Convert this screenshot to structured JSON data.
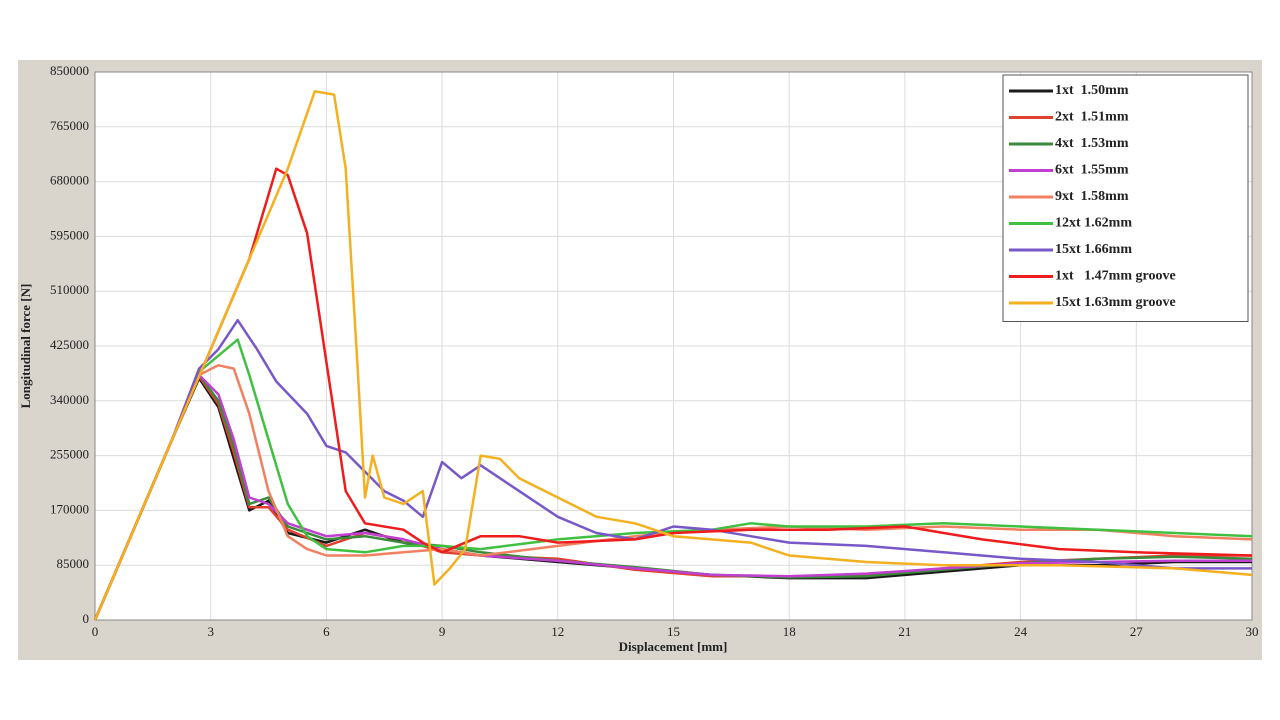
{
  "chart_data": {
    "type": "line",
    "xlabel": "Displacement [mm]",
    "ylabel": "Longitudinal force [N]",
    "xlim": [
      0,
      30
    ],
    "xticks": [
      0,
      3,
      6,
      9,
      12,
      15,
      18,
      21,
      24,
      27,
      30
    ],
    "ylim": [
      0,
      850000
    ],
    "yticks": [
      0,
      85000,
      170000,
      255000,
      340000,
      425000,
      510000,
      595000,
      680000,
      765000,
      850000
    ],
    "grid": true,
    "legend": "upper right",
    "series": [
      {
        "name": "1xt  1.50mm",
        "color": "#1a1a1a",
        "x": [
          0,
          1,
          2,
          2.7,
          3.2,
          3.6,
          4,
          4.5,
          5,
          6,
          7,
          8,
          9,
          10,
          12,
          14,
          16,
          18,
          20,
          22,
          24,
          26,
          28,
          30
        ],
        "values": [
          0,
          140000,
          280000,
          375000,
          330000,
          250000,
          170000,
          185000,
          135000,
          120000,
          140000,
          120000,
          110000,
          100000,
          90000,
          80000,
          70000,
          65000,
          65000,
          75000,
          85000,
          85000,
          90000,
          90000
        ]
      },
      {
        "name": "2xt  1.51mm",
        "color": "#e04030",
        "x": [
          0,
          1,
          2,
          2.7,
          3.2,
          3.6,
          4,
          4.5,
          5,
          6,
          7,
          8,
          9,
          10,
          12,
          14,
          16,
          18,
          20,
          22,
          24,
          26,
          28,
          30
        ],
        "values": [
          0,
          140000,
          280000,
          378000,
          335000,
          260000,
          175000,
          175000,
          140000,
          115000,
          135000,
          125000,
          105000,
          100000,
          95000,
          78000,
          68000,
          68000,
          70000,
          80000,
          90000,
          95000,
          100000,
          100000
        ]
      },
      {
        "name": "4xt  1.53mm",
        "color": "#3a8a3a",
        "x": [
          0,
          1,
          2,
          2.7,
          3.2,
          3.6,
          4,
          4.5,
          5,
          6,
          7,
          8,
          9,
          10,
          12,
          14,
          16,
          18,
          20,
          22,
          24,
          26,
          28,
          30
        ],
        "values": [
          0,
          140000,
          280000,
          380000,
          340000,
          270000,
          180000,
          190000,
          145000,
          125000,
          130000,
          120000,
          115000,
          105000,
          92000,
          82000,
          70000,
          66000,
          68000,
          78000,
          88000,
          95000,
          98000,
          95000
        ]
      },
      {
        "name": "6xt  1.55mm",
        "color": "#c040d0",
        "x": [
          0,
          1,
          2,
          2.7,
          3.2,
          3.6,
          4,
          4.5,
          5,
          6,
          7,
          8,
          9,
          10,
          12,
          14,
          16,
          18,
          20,
          22,
          24,
          26,
          28,
          30
        ],
        "values": [
          0,
          140000,
          280000,
          380000,
          350000,
          280000,
          190000,
          180000,
          150000,
          130000,
          135000,
          125000,
          110000,
          100000,
          92000,
          80000,
          70000,
          68000,
          72000,
          80000,
          88000,
          90000,
          92000,
          92000
        ]
      },
      {
        "name": "9xt  1.58mm",
        "color": "#f08060",
        "x": [
          0,
          1,
          2,
          2.7,
          3.2,
          3.6,
          4,
          4.5,
          5,
          5.5,
          6,
          7,
          8,
          9,
          10,
          12,
          14,
          16,
          18,
          20,
          22,
          24,
          26,
          28,
          30
        ],
        "values": [
          0,
          140000,
          280000,
          380000,
          395000,
          390000,
          320000,
          200000,
          130000,
          110000,
          100000,
          100000,
          105000,
          110000,
          100000,
          115000,
          130000,
          140000,
          145000,
          140000,
          145000,
          140000,
          140000,
          130000,
          125000
        ]
      },
      {
        "name": "12xt 1.62mm",
        "color": "#40c040",
        "x": [
          0,
          1,
          2,
          2.7,
          3.2,
          3.7,
          4,
          4.5,
          5,
          5.5,
          6,
          7,
          8,
          9,
          10,
          12,
          14,
          16,
          17,
          18,
          20,
          22,
          24,
          26,
          28,
          30
        ],
        "values": [
          0,
          140000,
          280000,
          385000,
          410000,
          435000,
          380000,
          280000,
          180000,
          130000,
          110000,
          105000,
          115000,
          115000,
          110000,
          125000,
          135000,
          140000,
          150000,
          145000,
          145000,
          150000,
          145000,
          140000,
          135000,
          130000
        ]
      },
      {
        "name": "15xt 1.66mm",
        "color": "#7858c8",
        "x": [
          0,
          1,
          2,
          2.7,
          3.2,
          3.7,
          4.2,
          4.7,
          5.5,
          6,
          6.5,
          7,
          7.5,
          8,
          8.5,
          9,
          9.5,
          10,
          11,
          12,
          13,
          14,
          15,
          16,
          17,
          18,
          20,
          22,
          24,
          26,
          28,
          30
        ],
        "values": [
          0,
          140000,
          280000,
          390000,
          420000,
          465000,
          420000,
          370000,
          320000,
          270000,
          260000,
          230000,
          200000,
          185000,
          160000,
          245000,
          220000,
          240000,
          200000,
          160000,
          135000,
          125000,
          145000,
          140000,
          130000,
          120000,
          115000,
          105000,
          95000,
          90000,
          80000,
          80000
        ]
      },
      {
        "name": "1xt   1.47mm groove",
        "color": "#ee1c1c",
        "x": [
          0,
          1,
          2,
          3,
          4,
          4.7,
          5,
          5.5,
          6,
          6.5,
          7,
          8,
          8.5,
          9,
          10,
          11,
          12,
          14,
          15,
          17,
          19,
          21,
          23,
          25,
          27,
          30
        ],
        "values": [
          0,
          140000,
          280000,
          420000,
          560000,
          700000,
          690000,
          600000,
          400000,
          200000,
          150000,
          140000,
          120000,
          105000,
          130000,
          130000,
          120000,
          125000,
          135000,
          140000,
          140000,
          145000,
          125000,
          110000,
          105000,
          100000
        ]
      },
      {
        "name": "15xt 1.63mm groove",
        "color": "#f5b020",
        "x": [
          0,
          1,
          2,
          3,
          4,
          5,
          5.7,
          6.2,
          6.5,
          6.8,
          7,
          7.2,
          7.5,
          8,
          8.5,
          8.8,
          9.2,
          9.6,
          10,
          10.5,
          11,
          12,
          13,
          14,
          15,
          17,
          18,
          20,
          22,
          25,
          28,
          30
        ],
        "values": [
          0,
          140000,
          280000,
          420000,
          560000,
          700000,
          820000,
          815000,
          700000,
          400000,
          190000,
          255000,
          190000,
          180000,
          200000,
          55000,
          80000,
          110000,
          255000,
          250000,
          220000,
          190000,
          160000,
          150000,
          130000,
          120000,
          100000,
          90000,
          85000,
          85000,
          80000,
          70000
        ]
      }
    ]
  }
}
